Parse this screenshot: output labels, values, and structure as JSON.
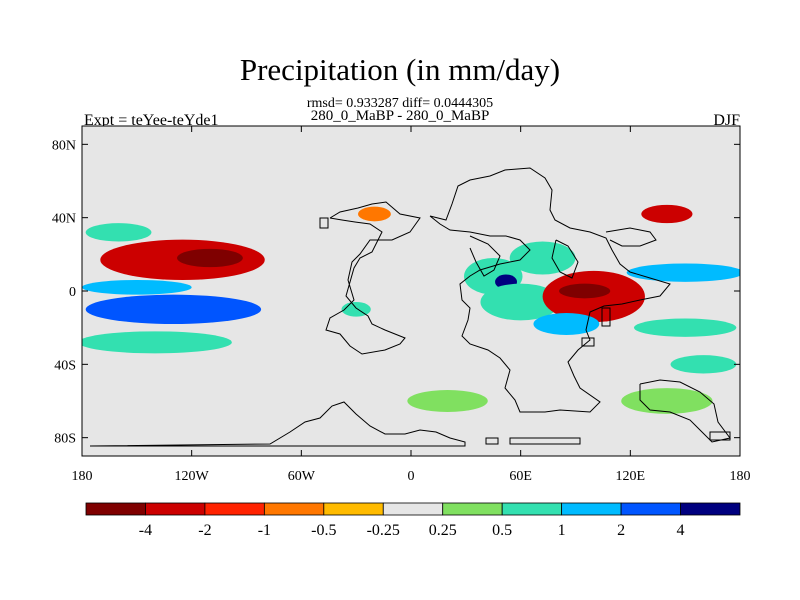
{
  "chart_data": {
    "type": "heatmap",
    "title": "Precipitation (in mm/day)",
    "stats": "rmsd= 0.933287 diff= 0.0444305",
    "subtitle": "280_0_MaBP - 280_0_MaBP",
    "left_label": "Expt = teYee-teYde1",
    "right_label": "DJF",
    "xlim": [
      -180,
      180
    ],
    "ylim": [
      -90,
      90
    ],
    "x_ticks": [
      {
        "value": -180,
        "label": "180"
      },
      {
        "value": -120,
        "label": "120W"
      },
      {
        "value": -60,
        "label": "60W"
      },
      {
        "value": 0,
        "label": "0"
      },
      {
        "value": 60,
        "label": "60E"
      },
      {
        "value": 120,
        "label": "120E"
      },
      {
        "value": 180,
        "label": "180"
      }
    ],
    "y_ticks": [
      {
        "value": 80,
        "label": "80N"
      },
      {
        "value": 40,
        "label": "40N"
      },
      {
        "value": 0,
        "label": "0"
      },
      {
        "value": -40,
        "label": "40S"
      },
      {
        "value": -80,
        "label": "80S"
      }
    ],
    "colorbar": {
      "colors": [
        "#7f0000",
        "#cc0000",
        "#ff2200",
        "#ff7700",
        "#ffbb00",
        "#e6e6e6",
        "#80e060",
        "#33e0b0",
        "#00bbff",
        "#0055ff",
        "#00007f"
      ],
      "levels": [
        "-4",
        "-2",
        "-1",
        "-0.5",
        "-0.25",
        "0.25",
        "0.5",
        "1",
        "2",
        "4"
      ]
    },
    "anomalies": [
      {
        "lon": -125,
        "lat": 17,
        "rlon": 45,
        "rlat": 11,
        "value": -2.5
      },
      {
        "lon": -110,
        "lat": 18,
        "rlon": 18,
        "rlat": 5,
        "value": -4.5
      },
      {
        "lon": -150,
        "lat": 2,
        "rlon": 30,
        "rlat": 4,
        "value": 1.2
      },
      {
        "lon": -130,
        "lat": -10,
        "rlon": 48,
        "rlat": 8,
        "value": 2.2
      },
      {
        "lon": -140,
        "lat": -28,
        "rlon": 42,
        "rlat": 6,
        "value": 0.6
      },
      {
        "lon": -160,
        "lat": 32,
        "rlon": 18,
        "rlat": 5,
        "value": 0.6
      },
      {
        "lon": -20,
        "lat": 42,
        "rlon": 9,
        "rlat": 4,
        "value": -0.5
      },
      {
        "lon": 45,
        "lat": 8,
        "rlon": 16,
        "rlat": 10,
        "value": 1.0
      },
      {
        "lon": 52,
        "lat": 5,
        "rlon": 6,
        "rlat": 4,
        "value": 4.5
      },
      {
        "lon": 60,
        "lat": -6,
        "rlon": 22,
        "rlat": 10,
        "value": 0.8
      },
      {
        "lon": 100,
        "lat": -3,
        "rlon": 28,
        "rlat": 14,
        "value": -2.2
      },
      {
        "lon": 95,
        "lat": 0,
        "rlon": 14,
        "rlat": 4,
        "value": -4.5
      },
      {
        "lon": 72,
        "lat": 18,
        "rlon": 18,
        "rlat": 9,
        "value": 0.7
      },
      {
        "lon": 85,
        "lat": -18,
        "rlon": 18,
        "rlat": 6,
        "value": 1.5
      },
      {
        "lon": 140,
        "lat": 42,
        "rlon": 14,
        "rlat": 5,
        "value": -2.5
      },
      {
        "lon": 150,
        "lat": 10,
        "rlon": 32,
        "rlat": 5,
        "value": 1.5
      },
      {
        "lon": 150,
        "lat": -20,
        "rlon": 28,
        "rlat": 5,
        "value": 0.8
      },
      {
        "lon": 160,
        "lat": -40,
        "rlon": 18,
        "rlat": 5,
        "value": 0.6
      },
      {
        "lon": -30,
        "lat": -10,
        "rlon": 8,
        "rlat": 4,
        "value": 0.6
      },
      {
        "lon": 20,
        "lat": -60,
        "rlon": 22,
        "rlat": 6,
        "value": 0.4
      },
      {
        "lon": 140,
        "lat": -60,
        "rlon": 25,
        "rlat": 7,
        "value": 0.5
      }
    ]
  }
}
